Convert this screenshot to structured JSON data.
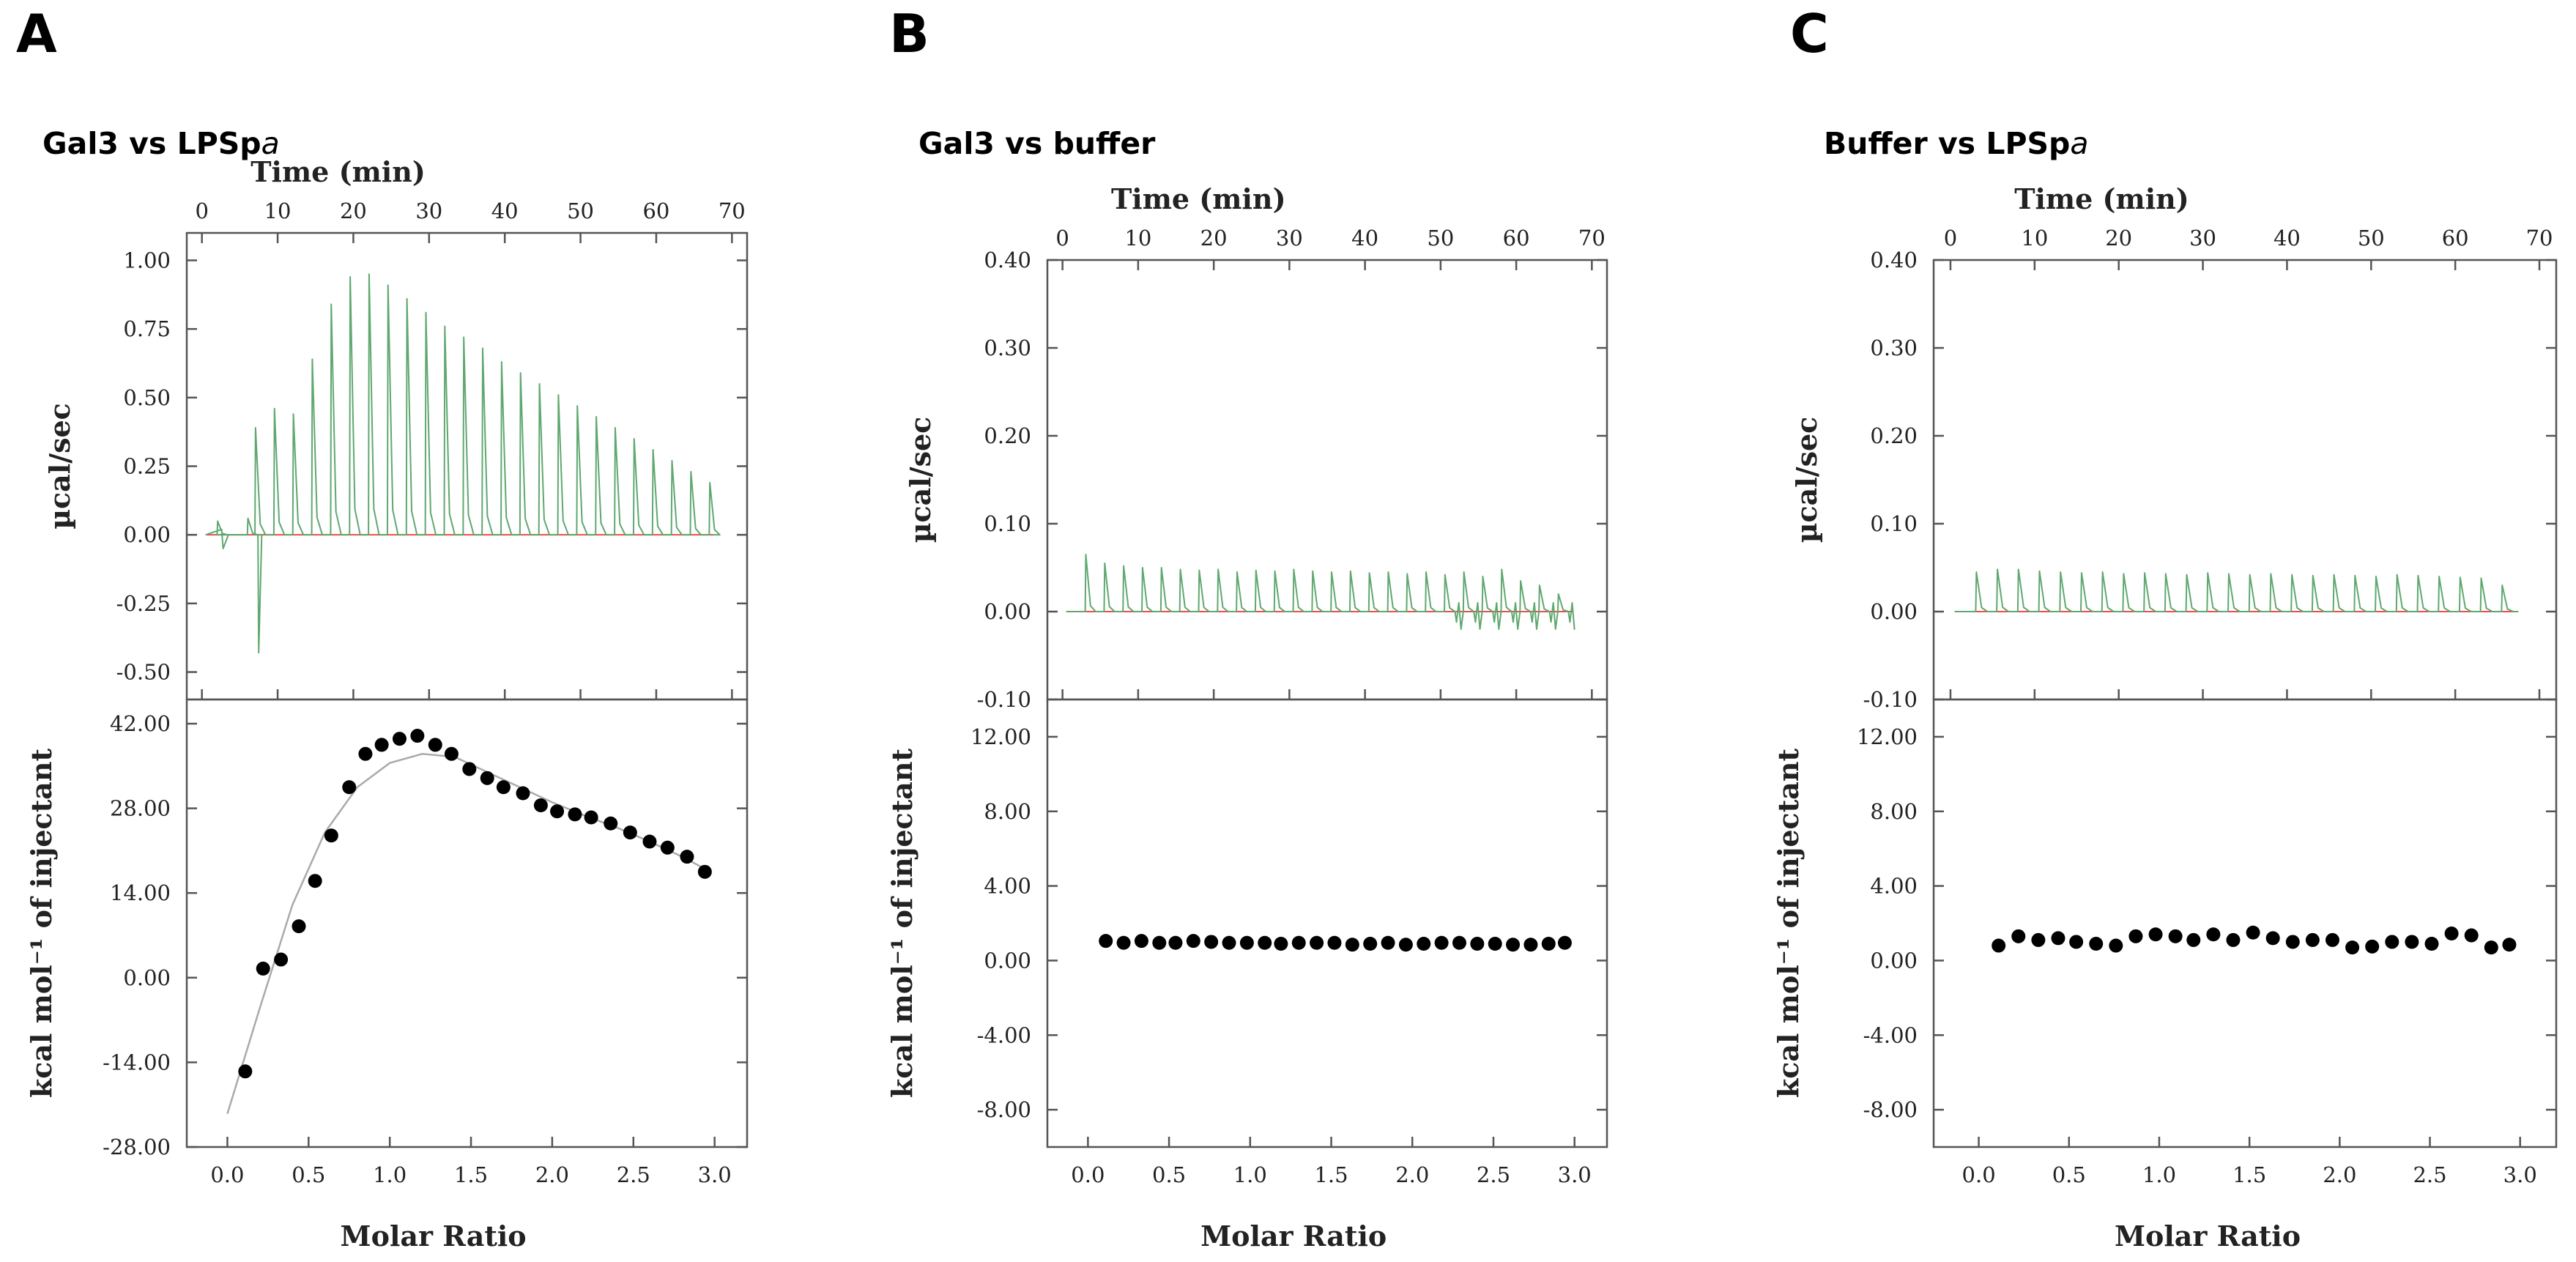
{
  "colors": {
    "injection_trace": "#5fa86f",
    "baseline": "#e8504f",
    "points": "#000000",
    "fit": "#aaaaaa",
    "frame": "#555555"
  },
  "panels": [
    {
      "letter": "A",
      "title": "Gal3 vs LPSp",
      "title_italic": "a",
      "chart_data": [
        {
          "type": "line",
          "title": "",
          "xlabel": "Time (min)",
          "ylabel": "µcal/sec",
          "xlim": [
            -2,
            72
          ],
          "ylim": [
            -0.6,
            1.1
          ],
          "xticks": [
            0,
            10,
            20,
            30,
            40,
            50,
            60,
            70
          ],
          "yticks": [
            -0.5,
            -0.25,
            0.0,
            0.25,
            0.5,
            0.75,
            1.0
          ],
          "ytick_labels": [
            "-0.50",
            "-0.25",
            "0.00",
            "0.25",
            "0.50",
            "0.75",
            "1.00"
          ],
          "grid": false,
          "injection_times": [
            2,
            4.5,
            7,
            9.5,
            12,
            14.5,
            17,
            19.5,
            22,
            24.5,
            27,
            29.5,
            32,
            34.5,
            37,
            39.5,
            42,
            44.5,
            47,
            49.5,
            52,
            54.5,
            57,
            59.5,
            62,
            64.5,
            67
          ],
          "peak_heights": [
            0.05,
            0.06,
            0.39,
            0.46,
            0.44,
            0.64,
            0.84,
            0.94,
            0.95,
            0.91,
            0.86,
            0.81,
            0.76,
            0.72,
            0.68,
            0.63,
            0.59,
            0.55,
            0.51,
            0.47,
            0.43,
            0.39,
            0.35,
            0.31,
            0.27,
            0.23,
            0.19
          ],
          "initial_dip": -0.43,
          "baseline": 0.0
        },
        {
          "type": "scatter",
          "title": "",
          "xlabel": "Molar Ratio",
          "ylabel": "kcal mol⁻¹ of injectant",
          "xlim": [
            -0.25,
            3.2
          ],
          "ylim": [
            -28,
            46
          ],
          "xticks": [
            0.0,
            0.5,
            1.0,
            1.5,
            2.0,
            2.5,
            3.0
          ],
          "xtick_labels": [
            "0.0",
            "0.5",
            "1.0",
            "1.5",
            "2.0",
            "2.5",
            "3.0"
          ],
          "yticks": [
            -28,
            -14,
            0,
            14,
            28,
            42
          ],
          "ytick_labels": [
            "-28.00",
            "-14.00",
            "0.00",
            "14.00",
            "28.00",
            "42.00"
          ],
          "grid": false,
          "x": [
            0.11,
            0.22,
            0.33,
            0.44,
            0.54,
            0.64,
            0.75,
            0.85,
            0.95,
            1.06,
            1.17,
            1.28,
            1.38,
            1.49,
            1.6,
            1.7,
            1.82,
            1.93,
            2.03,
            2.14,
            2.24,
            2.36,
            2.48,
            2.6,
            2.71,
            2.83,
            2.94
          ],
          "y": [
            -15.5,
            1.5,
            3.0,
            8.5,
            16.0,
            23.5,
            31.5,
            37.0,
            38.5,
            39.5,
            40.0,
            38.5,
            37.0,
            34.5,
            33.0,
            31.5,
            30.5,
            28.5,
            27.5,
            27.0,
            26.5,
            25.5,
            24.0,
            22.5,
            21.5,
            20.0,
            17.5
          ],
          "fit": {
            "x": [
              0.0,
              0.2,
              0.4,
              0.6,
              0.8,
              1.0,
              1.2,
              1.4,
              1.6,
              1.8,
              2.0,
              2.2,
              2.4,
              2.6,
              2.8,
              2.94
            ],
            "y": [
              -22.5,
              -5.0,
              12.0,
              24.0,
              31.5,
              35.5,
              37.0,
              36.5,
              34.0,
              31.5,
              29.0,
              26.8,
              24.8,
              22.5,
              20.0,
              18.0
            ]
          }
        }
      ]
    },
    {
      "letter": "B",
      "title": "Gal3 vs buffer",
      "title_italic": "",
      "chart_data": [
        {
          "type": "line",
          "title": "",
          "xlabel": "Time (min)",
          "ylabel": "µcal/sec",
          "xlim": [
            -2,
            72
          ],
          "ylim": [
            -0.1,
            0.4
          ],
          "xticks": [
            0,
            10,
            20,
            30,
            40,
            50,
            60,
            70
          ],
          "yticks": [
            -0.1,
            0.0,
            0.1,
            0.2,
            0.3,
            0.4
          ],
          "ytick_labels": [
            "-0.10",
            "0.00",
            "0.10",
            "0.20",
            "0.30",
            "0.40"
          ],
          "grid": false,
          "injection_times": [
            3,
            5.5,
            8,
            10.5,
            13,
            15.5,
            18,
            20.5,
            23,
            25.5,
            28,
            30.5,
            33,
            35.5,
            38,
            40.5,
            43,
            45.5,
            48,
            50.5,
            53,
            55.5,
            58,
            60.5,
            63,
            65.5
          ],
          "peak_heights": [
            0.065,
            0.055,
            0.052,
            0.05,
            0.05,
            0.048,
            0.047,
            0.048,
            0.045,
            0.047,
            0.046,
            0.048,
            0.046,
            0.045,
            0.046,
            0.044,
            0.045,
            0.043,
            0.045,
            0.042,
            0.045,
            0.04,
            0.048,
            0.035,
            0.03,
            0.02
          ],
          "noise_region": [
            48,
            68
          ],
          "baseline": 0.0
        },
        {
          "type": "scatter",
          "title": "",
          "xlabel": "Molar Ratio",
          "ylabel": "kcal mol⁻¹ of injectant",
          "xlim": [
            -0.25,
            3.2
          ],
          "ylim": [
            -10,
            14
          ],
          "xticks": [
            0.0,
            0.5,
            1.0,
            1.5,
            2.0,
            2.5,
            3.0
          ],
          "xtick_labels": [
            "0.0",
            "0.5",
            "1.0",
            "1.5",
            "2.0",
            "2.5",
            "3.0"
          ],
          "yticks": [
            -8,
            -4,
            0,
            4,
            8,
            12
          ],
          "ytick_labels": [
            "-8.00",
            "-4.00",
            "0.00",
            "4.00",
            "8.00",
            "12.00"
          ],
          "grid": false,
          "x": [
            0.11,
            0.22,
            0.33,
            0.44,
            0.54,
            0.65,
            0.76,
            0.87,
            0.98,
            1.09,
            1.19,
            1.3,
            1.41,
            1.52,
            1.63,
            1.74,
            1.85,
            1.96,
            2.07,
            2.18,
            2.29,
            2.4,
            2.51,
            2.62,
            2.73,
            2.84,
            2.94
          ],
          "y": [
            1.05,
            0.95,
            1.05,
            0.95,
            0.95,
            1.05,
            1.0,
            0.95,
            0.95,
            0.95,
            0.9,
            0.95,
            0.95,
            0.95,
            0.85,
            0.9,
            0.95,
            0.85,
            0.9,
            0.95,
            0.95,
            0.9,
            0.9,
            0.85,
            0.85,
            0.9,
            0.95
          ]
        }
      ]
    },
    {
      "letter": "C",
      "title": "Buffer vs LPSp",
      "title_italic": "a",
      "chart_data": [
        {
          "type": "line",
          "title": "",
          "xlabel": "Time (min)",
          "ylabel": "µcal/sec",
          "xlim": [
            -2,
            72
          ],
          "ylim": [
            -0.1,
            0.4
          ],
          "xticks": [
            0,
            10,
            20,
            30,
            40,
            50,
            60,
            70
          ],
          "yticks": [
            -0.1,
            0.0,
            0.1,
            0.2,
            0.3,
            0.4
          ],
          "ytick_labels": [
            "-0.10",
            "0.00",
            "0.10",
            "0.20",
            "0.30",
            "0.40"
          ],
          "grid": false,
          "injection_times": [
            3,
            5.5,
            8,
            10.5,
            13,
            15.5,
            18,
            20.5,
            23,
            25.5,
            28,
            30.5,
            33,
            35.5,
            38,
            40.5,
            43,
            45.5,
            48,
            50.5,
            53,
            55.5,
            58,
            60.5,
            63,
            65.5
          ],
          "peak_heights": [
            0.045,
            0.048,
            0.048,
            0.046,
            0.045,
            0.044,
            0.045,
            0.043,
            0.044,
            0.043,
            0.042,
            0.044,
            0.043,
            0.042,
            0.043,
            0.042,
            0.041,
            0.042,
            0.041,
            0.04,
            0.042,
            0.041,
            0.04,
            0.039,
            0.038,
            0.03
          ],
          "baseline": 0.0
        },
        {
          "type": "scatter",
          "title": "",
          "xlabel": "Molar Ratio",
          "ylabel": "kcal mol⁻¹ of injectant",
          "xlim": [
            -0.25,
            3.2
          ],
          "ylim": [
            -10,
            14
          ],
          "xticks": [
            0.0,
            0.5,
            1.0,
            1.5,
            2.0,
            2.5,
            3.0
          ],
          "xtick_labels": [
            "0.0",
            "0.5",
            "1.0",
            "1.5",
            "2.0",
            "2.5",
            "3.0"
          ],
          "yticks": [
            -8,
            -4,
            0,
            4,
            8,
            12
          ],
          "ytick_labels": [
            "-8.00",
            "-4.00",
            "0.00",
            "4.00",
            "8.00",
            "12.00"
          ],
          "grid": false,
          "x": [
            0.11,
            0.22,
            0.33,
            0.44,
            0.54,
            0.65,
            0.76,
            0.87,
            0.98,
            1.09,
            1.19,
            1.3,
            1.41,
            1.52,
            1.63,
            1.74,
            1.85,
            1.96,
            2.07,
            2.18,
            2.29,
            2.4,
            2.51,
            2.62,
            2.73,
            2.84,
            2.94
          ],
          "y": [
            0.8,
            1.3,
            1.1,
            1.2,
            1.0,
            0.9,
            0.8,
            1.3,
            1.4,
            1.3,
            1.1,
            1.4,
            1.1,
            1.5,
            1.2,
            1.0,
            1.1,
            1.1,
            0.7,
            0.75,
            1.0,
            1.0,
            0.9,
            1.45,
            1.35,
            0.7,
            0.85
          ]
        }
      ]
    }
  ]
}
